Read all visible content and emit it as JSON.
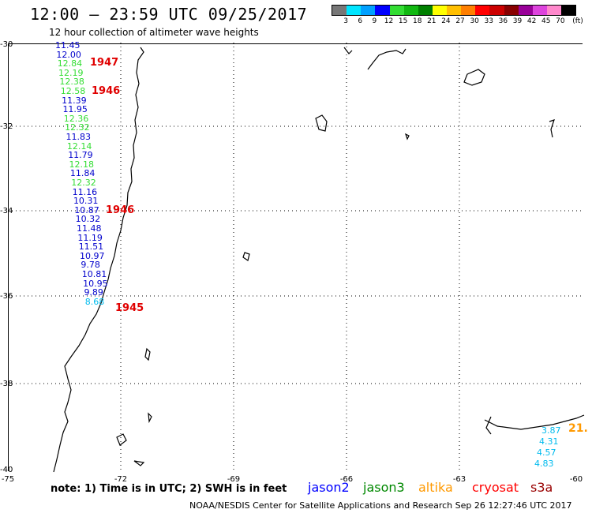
{
  "title": "12:00 — 23:59 UTC 09/25/2017",
  "subtitle": "12 hour collection of altimeter wave heights",
  "scale": {
    "colors": [
      "#777777",
      "#00e5ff",
      "#00a0ff",
      "#0000ff",
      "#33dd33",
      "#11b811",
      "#008000",
      "#ffff00",
      "#ffbf00",
      "#ff7f00",
      "#ff0000",
      "#cc0000",
      "#880000",
      "#990099",
      "#dd44dd",
      "#ff88cc",
      "#000000"
    ],
    "labels": [
      "3",
      "6",
      "9",
      "12",
      "15",
      "18",
      "21",
      "24",
      "27",
      "30",
      "33",
      "36",
      "39",
      "42",
      "45",
      "70",
      "(ft)"
    ]
  },
  "lat_labels": [
    "-30",
    "-32",
    "-34",
    "-36",
    "-38",
    "-40"
  ],
  "lon_labels": [
    "-75",
    "-72",
    "-69",
    "-66",
    "-63",
    "-60"
  ],
  "track_values": [
    {
      "v": "11.45",
      "c": "#0000cc"
    },
    {
      "v": "12.00",
      "c": "#0000cc"
    },
    {
      "v": "12.84",
      "c": "#33dd33"
    },
    {
      "v": "12.19",
      "c": "#33dd33"
    },
    {
      "v": "12.38",
      "c": "#33dd33"
    },
    {
      "v": "12.58",
      "c": "#33dd33"
    },
    {
      "v": "11.39",
      "c": "#0000cc"
    },
    {
      "v": "11.95",
      "c": "#0000cc"
    },
    {
      "v": "12.36",
      "c": "#33dd33"
    },
    {
      "v": "12.32",
      "c": "#33dd33"
    },
    {
      "v": "11.83",
      "c": "#0000cc"
    },
    {
      "v": "12.14",
      "c": "#33dd33"
    },
    {
      "v": "11.79",
      "c": "#0000cc"
    },
    {
      "v": "12.18",
      "c": "#33dd33"
    },
    {
      "v": "11.84",
      "c": "#0000cc"
    },
    {
      "v": "12.32",
      "c": "#33dd33"
    },
    {
      "v": "11.16",
      "c": "#0000cc"
    },
    {
      "v": "10.31",
      "c": "#0000cc"
    },
    {
      "v": "10.87",
      "c": "#0000cc"
    },
    {
      "v": "10.32",
      "c": "#0000cc"
    },
    {
      "v": "11.48",
      "c": "#0000cc"
    },
    {
      "v": "11.19",
      "c": "#0000cc"
    },
    {
      "v": "11.51",
      "c": "#0000cc"
    },
    {
      "v": "10.97",
      "c": "#0000cc"
    },
    {
      "v": "9.78",
      "c": "#0000cc"
    },
    {
      "v": "10.81",
      "c": "#0000cc"
    },
    {
      "v": "10.95",
      "c": "#0000cc"
    },
    {
      "v": "9.89",
      "c": "#0000cc"
    },
    {
      "v": "8.68",
      "c": "#00bbee"
    }
  ],
  "orbit_labels": [
    "1947",
    "1946",
    "1946",
    "1945"
  ],
  "south_values": [
    {
      "v": "3.87",
      "c": "#00bbee"
    },
    {
      "v": "4.31",
      "c": "#00bbee"
    },
    {
      "v": "4.57",
      "c": "#00bbee"
    },
    {
      "v": "4.83",
      "c": "#00bbee"
    }
  ],
  "edge_value": "21.",
  "note": "note:  1) Time is in UTC;  2) SWH is in feet",
  "legend": [
    {
      "name": "jason2",
      "color": "#0000ff"
    },
    {
      "name": "jason3",
      "color": "#008800"
    },
    {
      "name": "altika",
      "color": "#ff9900"
    },
    {
      "name": "cryosat",
      "color": "#ff0000"
    },
    {
      "name": "s3a",
      "color": "#990000"
    }
  ],
  "footer": "NOAA/NESDIS Center for Satellite Applications and Research    Sep 26 12:27:46 UTC 2017"
}
